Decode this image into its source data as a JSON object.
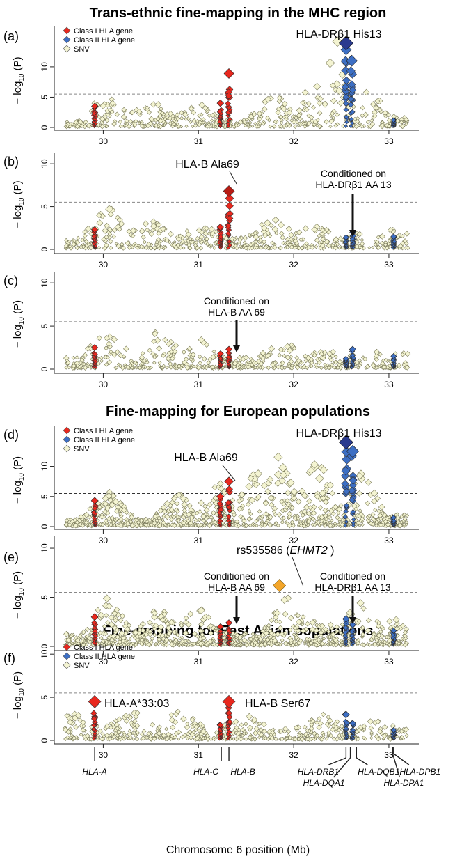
{
  "figure": {
    "x_axis_label": "Chromosome 6 position (Mb)",
    "y_axis_label": "− log10 (P)",
    "threshold": 5.5
  },
  "colors": {
    "class1": "#e8281e",
    "class2": "#3d6fc4",
    "snv": "#f4f4d2",
    "snv_stroke": "#7a7a5a",
    "highlight": "#f4a62a",
    "lead": "#2a3a8f"
  },
  "legend": {
    "class1": "Class I HLA gene",
    "class2": "Class II HLA gene",
    "snv": "SNV"
  },
  "titles": {
    "trans_ethnic": "Trans-ethnic fine-mapping in the MHC region",
    "european": "Fine-mapping for European populations",
    "east_asian": "Fine-mapping for East Asian populations"
  },
  "chart_data": [
    {
      "panel": "(a)",
      "type": "scatter",
      "xlim": [
        29.5,
        33.3
      ],
      "ylim": [
        0,
        15.5
      ],
      "x_ticks": [
        30,
        31,
        32,
        33
      ],
      "y_ticks": [
        0,
        5,
        10
      ],
      "legend_placement": "top-left",
      "annotations": [
        {
          "text": "HLA-DRβ1 His13",
          "x": 32.56,
          "y": 13.9
        }
      ],
      "peaks": [
        {
          "gene": "class1",
          "x": 29.91,
          "y": 3.5
        },
        {
          "gene": "class1",
          "x": 31.23,
          "y": 4.0
        },
        {
          "gene": "class1",
          "x": 31.32,
          "y": 8.9
        },
        {
          "gene": "class2",
          "x": 32.55,
          "y": 13.9
        },
        {
          "gene": "class2",
          "x": 32.61,
          "y": 11.0
        },
        {
          "gene": "class2",
          "x": 33.05,
          "y": 1.2
        }
      ],
      "snv_max": [
        [
          30.05,
          6.5
        ],
        [
          30.5,
          4.5
        ],
        [
          31.0,
          4.5
        ],
        [
          31.8,
          6.0
        ],
        [
          32.2,
          8.0
        ],
        [
          32.45,
          14.5
        ],
        [
          32.75,
          8.0
        ],
        [
          33.1,
          2.0
        ]
      ]
    },
    {
      "panel": "(b)",
      "type": "scatter",
      "xlim": [
        29.5,
        33.3
      ],
      "ylim": [
        0,
        10.5
      ],
      "x_ticks": [
        30,
        31,
        32,
        33
      ],
      "y_ticks": [
        0,
        5,
        10
      ],
      "annotations": [
        {
          "text": "HLA-B Ala69",
          "x": 31.32,
          "y": 6.8
        },
        {
          "text": "Conditioned on",
          "x": 32.55,
          "y": 2.0
        },
        {
          "text": "HLA-DRβ1 AA 13",
          "x": 32.55,
          "y": 2.0
        }
      ],
      "peaks": [
        {
          "gene": "class1",
          "x": 29.91,
          "y": 2.3
        },
        {
          "gene": "class1",
          "x": 31.23,
          "y": 2.6
        },
        {
          "gene": "class1",
          "x": 31.32,
          "y": 6.8
        },
        {
          "gene": "class2",
          "x": 32.55,
          "y": 1.4
        },
        {
          "gene": "class2",
          "x": 32.62,
          "y": 2.0
        },
        {
          "gene": "class2",
          "x": 33.05,
          "y": 1.5
        }
      ],
      "snv_max": [
        [
          30.05,
          5.3
        ],
        [
          30.5,
          3.5
        ],
        [
          31.0,
          3.5
        ],
        [
          31.8,
          4.4
        ],
        [
          32.2,
          3.0
        ],
        [
          32.8,
          2.3
        ],
        [
          33.1,
          2.6
        ]
      ]
    },
    {
      "panel": "(c)",
      "type": "scatter",
      "xlim": [
        29.5,
        33.3
      ],
      "ylim": [
        0,
        10.5
      ],
      "x_ticks": [
        30,
        31,
        32,
        33
      ],
      "y_ticks": [
        0,
        5,
        10
      ],
      "annotations": [
        {
          "text": "Conditioned on",
          "x": 31.32,
          "y": 2.5
        },
        {
          "text": "HLA-B AA 69",
          "x": 31.32,
          "y": 2.5
        }
      ],
      "peaks": [
        {
          "gene": "class1",
          "x": 29.91,
          "y": 2.5
        },
        {
          "gene": "class1",
          "x": 31.23,
          "y": 1.8
        },
        {
          "gene": "class1",
          "x": 31.32,
          "y": 2.3
        },
        {
          "gene": "class2",
          "x": 32.55,
          "y": 1.2
        },
        {
          "gene": "class2",
          "x": 32.62,
          "y": 2.3
        },
        {
          "gene": "class2",
          "x": 33.05,
          "y": 1.5
        }
      ],
      "snv_max": [
        [
          30.05,
          5.2
        ],
        [
          30.6,
          4.8
        ],
        [
          31.0,
          3.5
        ],
        [
          31.9,
          3.8
        ],
        [
          32.3,
          2.5
        ],
        [
          32.8,
          2.3
        ],
        [
          33.1,
          2.2
        ]
      ]
    },
    {
      "panel": "(d)",
      "type": "scatter",
      "xlim": [
        29.5,
        33.3
      ],
      "ylim": [
        0,
        15.5
      ],
      "x_ticks": [
        30,
        31,
        32,
        33
      ],
      "y_ticks": [
        0,
        5,
        10
      ],
      "legend_placement": "top-left",
      "annotations": [
        {
          "text": "HLA-DRβ1 His13",
          "x": 32.56,
          "y": 14.0
        },
        {
          "text": "HLA-B Ala69",
          "x": 31.32,
          "y": 7.5
        }
      ],
      "peaks": [
        {
          "gene": "class1",
          "x": 29.91,
          "y": 4.3
        },
        {
          "gene": "class1",
          "x": 31.23,
          "y": 5.0
        },
        {
          "gene": "class1",
          "x": 31.32,
          "y": 7.5
        },
        {
          "gene": "class2",
          "x": 32.55,
          "y": 14.0
        },
        {
          "gene": "class2",
          "x": 32.62,
          "y": 12.5
        },
        {
          "gene": "class2",
          "x": 33.05,
          "y": 1.5
        }
      ],
      "snv_max": [
        [
          30.05,
          6.0
        ],
        [
          30.8,
          5.5
        ],
        [
          31.2,
          8.0
        ],
        [
          31.6,
          9.5
        ],
        [
          31.85,
          12.5
        ],
        [
          32.25,
          12.0
        ],
        [
          32.7,
          10.0
        ],
        [
          33.1,
          2.0
        ]
      ]
    },
    {
      "panel": "(e)",
      "type": "scatter",
      "xlim": [
        29.5,
        33.3
      ],
      "ylim": [
        0,
        10.5
      ],
      "x_ticks": [
        30,
        31,
        32,
        33
      ],
      "y_ticks": [
        0,
        5,
        10
      ],
      "annotations": [
        {
          "text": "rs535586 (",
          "x": 31.85,
          "y": 6.2
        },
        {
          "text": "EHMT2",
          "x": 31.85,
          "y": 6.2
        },
        {
          "text": " )",
          "x": 31.85,
          "y": 6.2
        },
        {
          "text": "Conditioned on",
          "x": 31.32,
          "y": 2.4
        },
        {
          "text": "HLA-B AA 69",
          "x": 31.32,
          "y": 2.4
        },
        {
          "text": "Conditioned on",
          "x": 32.55,
          "y": 2.8
        },
        {
          "text": "HLA-DRβ1 AA 13",
          "x": 32.55,
          "y": 2.8
        }
      ],
      "highlight": {
        "x": 31.85,
        "y": 6.2
      },
      "peaks": [
        {
          "gene": "class1",
          "x": 29.91,
          "y": 3.0
        },
        {
          "gene": "class1",
          "x": 31.23,
          "y": 2.0
        },
        {
          "gene": "class1",
          "x": 31.32,
          "y": 2.4
        },
        {
          "gene": "class2",
          "x": 32.55,
          "y": 2.8
        },
        {
          "gene": "class2",
          "x": 32.62,
          "y": 2.2
        },
        {
          "gene": "class2",
          "x": 33.05,
          "y": 1.6
        }
      ],
      "snv_max": [
        [
          30.05,
          5.0
        ],
        [
          30.6,
          4.0
        ],
        [
          31.0,
          4.0
        ],
        [
          31.95,
          5.5
        ],
        [
          32.3,
          3.0
        ],
        [
          32.7,
          4.5
        ],
        [
          33.1,
          3.0
        ]
      ]
    },
    {
      "panel": "(f)",
      "type": "scatter",
      "xlim": [
        29.5,
        33.3
      ],
      "ylim": [
        0,
        10.5
      ],
      "x_ticks": [
        30,
        31,
        32,
        33
      ],
      "y_ticks": [
        0,
        5,
        10
      ],
      "legend_placement": "top-left",
      "annotations": [
        {
          "text": "HLA-A*33:03",
          "x": 29.91,
          "y": 4.5
        },
        {
          "text": "HLA-B Ser67",
          "x": 31.32,
          "y": 4.5
        }
      ],
      "peaks": [
        {
          "gene": "class1",
          "x": 29.91,
          "y": 4.5
        },
        {
          "gene": "class1",
          "x": 31.23,
          "y": 1.8
        },
        {
          "gene": "class1",
          "x": 31.32,
          "y": 4.5
        },
        {
          "gene": "class2",
          "x": 32.55,
          "y": 3.0
        },
        {
          "gene": "class2",
          "x": 32.62,
          "y": 2.0
        },
        {
          "gene": "class2",
          "x": 33.05,
          "y": 1.2
        }
      ],
      "snv_max": [
        [
          29.7,
          3.5
        ],
        [
          30.3,
          3.5
        ],
        [
          30.8,
          3.5
        ],
        [
          31.5,
          3.0
        ],
        [
          32.3,
          3.0
        ],
        [
          32.9,
          2.5
        ],
        [
          33.1,
          1.5
        ]
      ]
    }
  ],
  "genes": [
    {
      "name": "HLA-A",
      "x": 29.91
    },
    {
      "name": "HLA-C",
      "x": 31.24
    },
    {
      "name": "HLA-B",
      "x": 31.32
    },
    {
      "name": "HLA-DRB1",
      "x": 32.55
    },
    {
      "name": "HLA-DQA1",
      "x": 32.61
    },
    {
      "name": "HLA-DQB1",
      "x": 32.63
    },
    {
      "name": "HLA-DPB1",
      "x": 33.05
    },
    {
      "name": "HLA-DPA1",
      "x": 33.04
    }
  ]
}
